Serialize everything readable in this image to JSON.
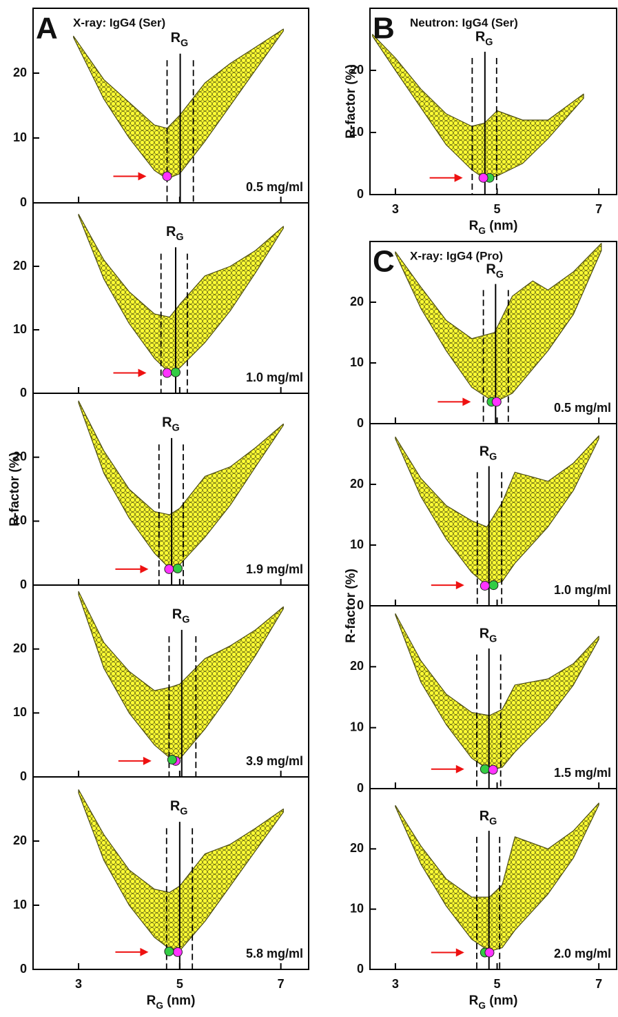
{
  "chart_data": [
    {
      "type": "scatter",
      "letter": "A",
      "title": "X-ray: IgG4 (Ser)",
      "annotation": "0.5 mg/ml",
      "xlim": [
        2.1,
        7.55
      ],
      "ylim": [
        0,
        30
      ],
      "xticks": [
        3,
        5,
        7
      ],
      "yticks": [
        0,
        10,
        20
      ],
      "cloud": {
        "color": "#ffff33",
        "x": [
          2.9,
          3.5,
          4.0,
          4.5,
          4.75,
          5.0,
          5.5,
          6.0,
          6.5,
          7.05
        ],
        "lower": [
          25.5,
          16,
          10,
          5,
          3.7,
          4.5,
          9.5,
          15,
          20.5,
          26.5
        ],
        "upper": [
          25.7,
          19,
          15.5,
          12,
          11.5,
          13.5,
          18.5,
          21.5,
          24,
          26.8
        ]
      },
      "rg": {
        "label": [
          "R",
          "G"
        ],
        "value": 5.01,
        "low": 4.75,
        "high": 5.27
      },
      "best_fit": [
        {
          "x": 4.75,
          "y": 4.1,
          "color": "#ff33ff"
        }
      ],
      "arrow_color": "#ee1111"
    },
    {
      "type": "scatter",
      "annotation": "1.0 mg/ml",
      "xlim": [
        2.1,
        7.55
      ],
      "ylim": [
        0,
        30
      ],
      "xticks": [
        3,
        5,
        7
      ],
      "yticks": [
        0,
        10,
        20
      ],
      "cloud": {
        "color": "#ffff33",
        "x": [
          3.0,
          3.5,
          4.0,
          4.5,
          4.8,
          5.0,
          5.5,
          6.0,
          6.5,
          7.05
        ],
        "lower": [
          28,
          18,
          11,
          5.5,
          3.2,
          4,
          8,
          13,
          19,
          26
        ],
        "upper": [
          28.2,
          21,
          16,
          12.5,
          12,
          14,
          18.5,
          20,
          22.5,
          26.3
        ]
      },
      "rg": {
        "label": [
          "R",
          "G"
        ],
        "value": 4.92,
        "low": 4.63,
        "high": 5.15
      },
      "best_fit": [
        {
          "x": 4.75,
          "y": 3.2,
          "color": "#ff33ff"
        },
        {
          "x": 4.92,
          "y": 3.3,
          "color": "#33cc44"
        }
      ],
      "arrow_color": "#ee1111"
    },
    {
      "type": "scatter",
      "annotation": "1.9 mg/ml",
      "y_label": "R-factor (%)",
      "xlim": [
        2.1,
        7.55
      ],
      "ylim": [
        0,
        30
      ],
      "xticks": [
        3,
        5,
        7
      ],
      "yticks": [
        0,
        10,
        20
      ],
      "cloud": {
        "color": "#ffff33",
        "x": [
          3.0,
          3.5,
          4.0,
          4.5,
          4.8,
          5.0,
          5.5,
          6.0,
          6.5,
          7.05
        ],
        "lower": [
          28.5,
          17.5,
          10.5,
          5,
          2.6,
          3.2,
          7.5,
          12.5,
          18.5,
          25
        ],
        "upper": [
          28.8,
          21,
          15,
          11.5,
          11,
          12,
          17,
          18.5,
          21.5,
          25.2
        ]
      },
      "rg": {
        "label": [
          "R",
          "G"
        ],
        "value": 4.84,
        "low": 4.59,
        "high": 5.07
      },
      "best_fit": [
        {
          "x": 4.79,
          "y": 2.5,
          "color": "#ff33ff"
        },
        {
          "x": 4.96,
          "y": 2.6,
          "color": "#33cc44"
        }
      ],
      "arrow_color": "#ee1111"
    },
    {
      "type": "scatter",
      "annotation": "3.9 mg/ml",
      "xlim": [
        2.1,
        7.55
      ],
      "ylim": [
        0,
        30
      ],
      "xticks": [
        3,
        5,
        7
      ],
      "yticks": [
        0,
        10,
        20
      ],
      "cloud": {
        "color": "#ffff33",
        "x": [
          3.0,
          3.5,
          4.0,
          4.5,
          4.8,
          5.0,
          5.5,
          6.0,
          6.5,
          7.05
        ],
        "lower": [
          28.5,
          17,
          10,
          5,
          3,
          2.8,
          7.5,
          13,
          19,
          26.3
        ],
        "upper": [
          29,
          21,
          16.5,
          13.5,
          14,
          14.5,
          18.5,
          20.5,
          23,
          26.6
        ]
      },
      "rg": {
        "label": [
          "R",
          "G"
        ],
        "value": 5.04,
        "low": 4.79,
        "high": 5.32
      },
      "best_fit": [
        {
          "x": 4.92,
          "y": 2.5,
          "color": "#ff33ff"
        },
        {
          "x": 4.85,
          "y": 2.7,
          "color": "#33cc44"
        }
      ],
      "arrow_color": "#ee1111"
    },
    {
      "type": "scatter",
      "annotation": "5.8 mg/ml",
      "x_label": [
        "R",
        "G",
        " (nm)"
      ],
      "xlim": [
        2.1,
        7.55
      ],
      "ylim": [
        0,
        30
      ],
      "xticks": [
        3,
        5,
        7
      ],
      "yticks": [
        0,
        10,
        20
      ],
      "cloud": {
        "color": "#ffff33",
        "x": [
          3.0,
          3.5,
          4.0,
          4.5,
          4.8,
          5.0,
          5.5,
          6.0,
          6.5,
          7.05
        ],
        "lower": [
          27.5,
          17,
          10,
          5,
          3.2,
          2.9,
          7.5,
          13,
          18.5,
          24.5
        ],
        "upper": [
          28,
          21,
          15.5,
          12.5,
          12,
          13,
          18,
          19.5,
          22,
          25
        ]
      },
      "rg": {
        "label": [
          "R",
          "G"
        ],
        "value": 5.0,
        "low": 4.74,
        "high": 5.25
      },
      "best_fit": [
        {
          "x": 4.96,
          "y": 2.7,
          "color": "#ff33ff"
        },
        {
          "x": 4.79,
          "y": 2.8,
          "color": "#33cc44"
        }
      ],
      "arrow_color": "#ee1111"
    },
    {
      "type": "scatter",
      "letter": "B",
      "title": "Neutron: IgG4 (Ser)",
      "y_label": "R-factor (%)",
      "x_label": [
        "R",
        "G",
        " (nm)"
      ],
      "xlim": [
        2.5,
        7.35
      ],
      "ylim": [
        0,
        30
      ],
      "xticks": [
        3,
        5,
        7
      ],
      "yticks": [
        0,
        10,
        20
      ],
      "cloud": {
        "color": "#ffff33",
        "x": [
          2.55,
          3.0,
          3.5,
          4.0,
          4.5,
          4.75,
          5.0,
          5.5,
          6.0,
          6.7
        ],
        "lower": [
          25.5,
          20,
          14,
          8,
          4,
          2.6,
          3,
          5,
          9,
          15.5
        ],
        "upper": [
          25.8,
          22,
          17,
          13,
          11,
          11.5,
          13.5,
          12,
          12,
          16.2
        ]
      },
      "rg": {
        "label": [
          "R",
          "G"
        ],
        "value": 4.76,
        "low": 4.51,
        "high": 4.99
      },
      "best_fit": [
        {
          "x": 4.85,
          "y": 2.7,
          "color": "#33cc44"
        },
        {
          "x": 4.73,
          "y": 2.7,
          "color": "#ff33ff"
        }
      ],
      "arrow_color": "#ee1111"
    },
    {
      "type": "scatter",
      "letter": "C",
      "title": "X-ray: IgG4 (Pro)",
      "annotation": "0.5 mg/ml",
      "xlim": [
        2.5,
        7.35
      ],
      "ylim": [
        0,
        30
      ],
      "xticks": [
        3,
        5,
        7
      ],
      "yticks": [
        0,
        10,
        20
      ],
      "cloud": {
        "color": "#ffff33",
        "x": [
          3.0,
          3.5,
          4.0,
          4.5,
          4.95,
          5.3,
          5.7,
          6.0,
          6.5,
          7.05
        ],
        "lower": [
          28,
          19,
          12,
          6,
          3.5,
          5,
          9,
          12,
          18,
          28.5
        ],
        "upper": [
          28.3,
          22.5,
          17,
          14,
          15,
          21,
          23.5,
          22,
          25,
          29.7
        ]
      },
      "rg": {
        "label": [
          "R",
          "G"
        ],
        "value": 4.97,
        "low": 4.73,
        "high": 5.22
      },
      "best_fit": [
        {
          "x": 4.89,
          "y": 3.6,
          "color": "#33cc44"
        },
        {
          "x": 4.99,
          "y": 3.6,
          "color": "#ff33ff"
        }
      ],
      "arrow_color": "#ee1111"
    },
    {
      "type": "scatter",
      "annotation": "1.0 mg/ml",
      "y_label": "R-factor (%)",
      "xlim": [
        2.5,
        7.35
      ],
      "ylim": [
        0,
        30
      ],
      "xticks": [
        3,
        5,
        7
      ],
      "yticks": [
        0,
        10,
        20
      ],
      "cloud": {
        "color": "#ffff33",
        "x": [
          3.0,
          3.5,
          4.0,
          4.5,
          4.8,
          5.1,
          5.35,
          6.0,
          6.5,
          7.0
        ],
        "lower": [
          27.5,
          18,
          11,
          5.5,
          3.3,
          4,
          7,
          13,
          19,
          27.5
        ],
        "upper": [
          27.8,
          21,
          16.5,
          14,
          13,
          17,
          22,
          20.5,
          23.5,
          28
        ]
      },
      "rg": {
        "label": [
          "R",
          "G"
        ],
        "value": 4.84,
        "low": 4.61,
        "high": 5.09
      },
      "best_fit": [
        {
          "x": 4.93,
          "y": 3.4,
          "color": "#33cc44"
        },
        {
          "x": 4.76,
          "y": 3.3,
          "color": "#ff33ff"
        }
      ],
      "arrow_color": "#ee1111"
    },
    {
      "type": "scatter",
      "annotation": "1.5 mg/ml",
      "xlim": [
        2.5,
        7.35
      ],
      "ylim": [
        0,
        30
      ],
      "xticks": [
        3,
        5,
        7
      ],
      "yticks": [
        0,
        10,
        20
      ],
      "cloud": {
        "color": "#ffff33",
        "x": [
          3.0,
          3.5,
          4.0,
          4.5,
          4.85,
          5.1,
          5.35,
          6.0,
          6.5,
          7.0
        ],
        "lower": [
          28.5,
          17.5,
          10.5,
          5,
          3,
          3.5,
          6,
          11.5,
          17,
          24.5
        ],
        "upper": [
          28.7,
          21,
          15.5,
          12.5,
          12,
          13,
          17,
          18,
          20.5,
          25
        ]
      },
      "rg": {
        "label": [
          "R",
          "G"
        ],
        "value": 4.84,
        "low": 4.6,
        "high": 5.07
      },
      "best_fit": [
        {
          "x": 4.76,
          "y": 3.2,
          "color": "#33cc44"
        },
        {
          "x": 4.92,
          "y": 3.1,
          "color": "#ff33ff"
        }
      ],
      "arrow_color": "#ee1111"
    },
    {
      "type": "scatter",
      "annotation": "2.0 mg/ml",
      "x_label": [
        "R",
        "G",
        " (nm)"
      ],
      "xlim": [
        2.5,
        7.35
      ],
      "ylim": [
        0,
        30
      ],
      "xticks": [
        3,
        5,
        7
      ],
      "yticks": [
        0,
        10,
        20
      ],
      "cloud": {
        "color": "#ffff33",
        "x": [
          3.0,
          3.5,
          4.0,
          4.5,
          4.85,
          5.1,
          5.35,
          6.0,
          6.5,
          7.0
        ],
        "lower": [
          27,
          17.5,
          10.5,
          5,
          3,
          3.6,
          6.5,
          12.5,
          18.5,
          27.3
        ],
        "upper": [
          27.2,
          20.5,
          15,
          12,
          12,
          14,
          22,
          20,
          23,
          27.6
        ]
      },
      "rg": {
        "label": [
          "R",
          "G"
        ],
        "value": 4.84,
        "low": 4.6,
        "high": 5.05
      },
      "best_fit": [
        {
          "x": 4.76,
          "y": 2.8,
          "color": "#33cc44"
        },
        {
          "x": 4.85,
          "y": 2.8,
          "color": "#ff33ff"
        }
      ],
      "arrow_color": "#ee1111"
    }
  ]
}
